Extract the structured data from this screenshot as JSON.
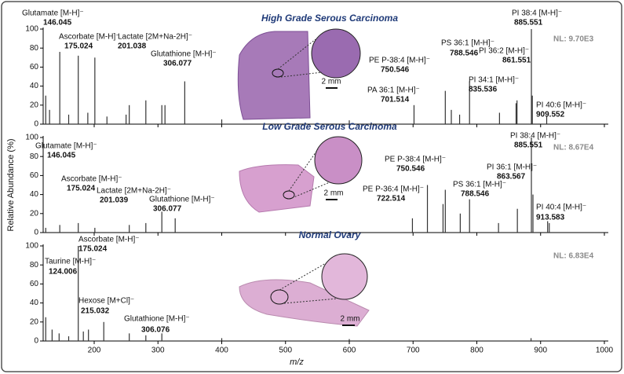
{
  "chart_data": [
    {
      "type": "stem",
      "title": "High Grade Serous Carcinoma",
      "nl_label": "NL: 9.70E3",
      "scale_bar": "2 mm",
      "xlim": [
        120,
        1000
      ],
      "xticks": [
        200,
        300,
        400,
        500,
        600,
        700,
        800,
        900,
        1000
      ],
      "show_xtick_labels": false,
      "ylim": [
        0,
        100
      ],
      "yticks": [
        0,
        20,
        40,
        60,
        80,
        100
      ],
      "color": "#333333",
      "labeled_peaks": {
        "x": [
          146.045,
          175.024,
          201.038,
          306.077,
          701.514,
          750.546,
          788.546,
          835.536,
          861.551,
          885.551,
          909.552
        ],
        "values": [
          76,
          72,
          70,
          20,
          20,
          35,
          45,
          12,
          22,
          100,
          8
        ],
        "labels": [
          "Glutamate [M-H]⁻",
          "Ascorbate [M-H]⁻",
          "Lactate [2M+Na-2H]⁻",
          "Glutathione [M-H]⁻",
          "PA 36:1 [M-H]⁻",
          "PE P-38:4 [M-H]⁻",
          "PS 36:1 [M-H]⁻",
          "PI 34:1 [M-H]⁻",
          "PI 36:2 [M-H]⁻",
          "PI 38:4 [M-H]⁻",
          "PI 40:6 [M-H]⁻"
        ]
      },
      "peaks": {
        "x": [
          124,
          130,
          160,
          190,
          220,
          250,
          255,
          281,
          311,
          342,
          400,
          600,
          760,
          773,
          863,
          887
        ],
        "values": [
          30,
          15,
          10,
          12,
          8,
          10,
          20,
          25,
          20,
          45,
          5,
          4,
          15,
          10,
          25,
          30
        ]
      }
    },
    {
      "type": "stem",
      "title": "Low Grade Serous Carcinoma",
      "nl_label": "NL: 8.67E4",
      "scale_bar": "2 mm",
      "ylabel": "Relative Abundance (%)",
      "xlim": [
        120,
        1000
      ],
      "xticks": [
        200,
        300,
        400,
        500,
        600,
        700,
        800,
        900,
        1000
      ],
      "show_xtick_labels": false,
      "ylim": [
        0,
        100
      ],
      "yticks": [
        0,
        20,
        40,
        60,
        80,
        100
      ],
      "color": "#333333",
      "labeled_peaks": {
        "x": [
          146.045,
          175.024,
          201.039,
          306.077,
          722.514,
          750.546,
          788.546,
          863.567,
          885.551,
          913.583
        ],
        "values": [
          8,
          10,
          5,
          22,
          50,
          45,
          35,
          25,
          100,
          10
        ],
        "labels": [
          "Glutamate [M-H]⁻",
          "Ascorbate [M-H]⁻",
          "Lactate [2M+Na-2H]⁻",
          "Glutathione [M-H]⁻",
          "PE P-36:4 [M-H]⁻",
          "PE P-38:4 [M-H]⁻",
          "PS 36:1 [M-H]⁻",
          "PI 36:1 [M-H]⁻",
          "PI 38:4 [M-H]⁻",
          "PI 40:4 [M-H]⁻"
        ]
      },
      "peaks": {
        "x": [
          124,
          255,
          281,
          327,
          699,
          747,
          774,
          834,
          888,
          911
        ],
        "values": [
          5,
          8,
          10,
          15,
          15,
          30,
          20,
          10,
          40,
          12
        ]
      }
    },
    {
      "type": "stem",
      "title": "Normal Ovary",
      "nl_label": "NL: 6.83E4",
      "scale_bar": "2 mm",
      "xlabel": "m/z",
      "xlim": [
        120,
        1000
      ],
      "xticks": [
        200,
        300,
        400,
        500,
        600,
        700,
        800,
        900,
        1000
      ],
      "show_xtick_labels": true,
      "ylim": [
        0,
        100
      ],
      "yticks": [
        0,
        20,
        40,
        60,
        80,
        100
      ],
      "color": "#333333",
      "labeled_peaks": {
        "x": [
          124.006,
          175.024,
          215.032,
          306.076
        ],
        "values": [
          25,
          100,
          20,
          8
        ],
        "labels": [
          "Taurine [M-H]⁻",
          "Ascorbate [M-H]⁻",
          "Hexose [M+Cl]⁻",
          "Glutathione [M-H]⁻"
        ]
      },
      "peaks": {
        "x": [
          134,
          145,
          160,
          183,
          191,
          255,
          281,
          400,
          600,
          885
        ],
        "values": [
          12,
          8,
          5,
          10,
          12,
          8,
          6,
          3,
          2,
          3
        ]
      }
    }
  ]
}
